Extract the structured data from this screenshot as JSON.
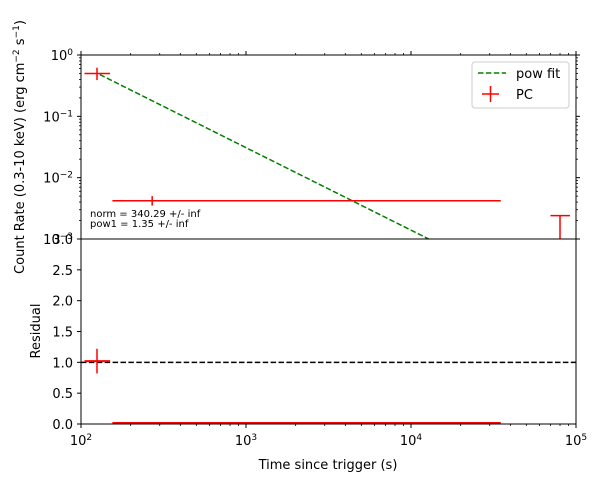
{
  "chart_data": [
    {
      "panel": "top",
      "type": "scatter",
      "x_scale": "log",
      "y_scale": "log",
      "xlim": [
        100,
        100000
      ],
      "ylim": [
        0.001,
        1
      ],
      "ylabel_parts": [
        "Count Rate (0.3-10 keV) (erg cm",
        "−2",
        " s",
        "−1",
        ")"
      ],
      "y_ticks": [
        {
          "value": 1,
          "base": "10",
          "exp": "0"
        },
        {
          "value": 0.1,
          "base": "10",
          "exp": "−1"
        },
        {
          "value": 0.01,
          "base": "10",
          "exp": "−2"
        },
        {
          "value": 0.001,
          "base": "10",
          "exp": "−3"
        }
      ],
      "legend": {
        "position": "top-right",
        "entries": [
          {
            "label": "pow fit",
            "style": "dashed-line",
            "color": "#008000"
          },
          {
            "label": "PC",
            "style": "errorbar",
            "color": "#ff0000"
          }
        ]
      },
      "annotations": [
        "norm = 340.29 +/- inf",
        "pow1 = 1.35 +/- inf"
      ],
      "series": [
        {
          "name": "pow fit",
          "kind": "line",
          "color": "#008000",
          "x": [
            130,
            12800
          ],
          "y": [
            0.48,
            0.001
          ]
        },
        {
          "name": "PC",
          "kind": "errorbar",
          "color": "#ff0000",
          "points": [
            {
              "x": 125,
              "xlo": 105,
              "xhi": 150,
              "y": 0.5,
              "ylo": 0.39,
              "yhi": 0.62
            },
            {
              "x": 270,
              "xlo": 155,
              "xhi": 35000,
              "y": 0.0042,
              "ylo": 0.0035,
              "yhi": 0.005
            },
            {
              "x": 80000,
              "xlo": 70000,
              "xhi": 92000,
              "y": 0.0024,
              "ylo": 0.0005,
              "yhi": 0.0024
            }
          ]
        }
      ]
    },
    {
      "panel": "bottom",
      "type": "scatter",
      "x_scale": "log",
      "xlim": [
        100,
        100000
      ],
      "ylim": [
        0,
        3.0
      ],
      "xlabel": "Time since trigger (s)",
      "ylabel": "Residual",
      "x_ticks": [
        {
          "value": 100,
          "base": "10",
          "exp": "2"
        },
        {
          "value": 1000,
          "base": "10",
          "exp": "3"
        },
        {
          "value": 10000,
          "base": "10",
          "exp": "4"
        },
        {
          "value": 100000,
          "base": "10",
          "exp": "5"
        }
      ],
      "y_ticks": [
        "0.0",
        "0.5",
        "1.0",
        "1.5",
        "2.0",
        "2.5",
        "3.0"
      ],
      "reference_line": {
        "y": 1.0,
        "style": "dashed",
        "color": "#000000"
      },
      "series": [
        {
          "name": "PC",
          "kind": "errorbar",
          "color": "#ff0000",
          "points": [
            {
              "x": 125,
              "xlo": 105,
              "xhi": 150,
              "y": 1.02,
              "ylo": 0.82,
              "yhi": 1.22
            },
            {
              "x": 270,
              "xlo": 155,
              "xhi": 35000,
              "y": 0.0,
              "ylo": 0.0,
              "yhi": 0.0
            }
          ]
        }
      ]
    }
  ]
}
